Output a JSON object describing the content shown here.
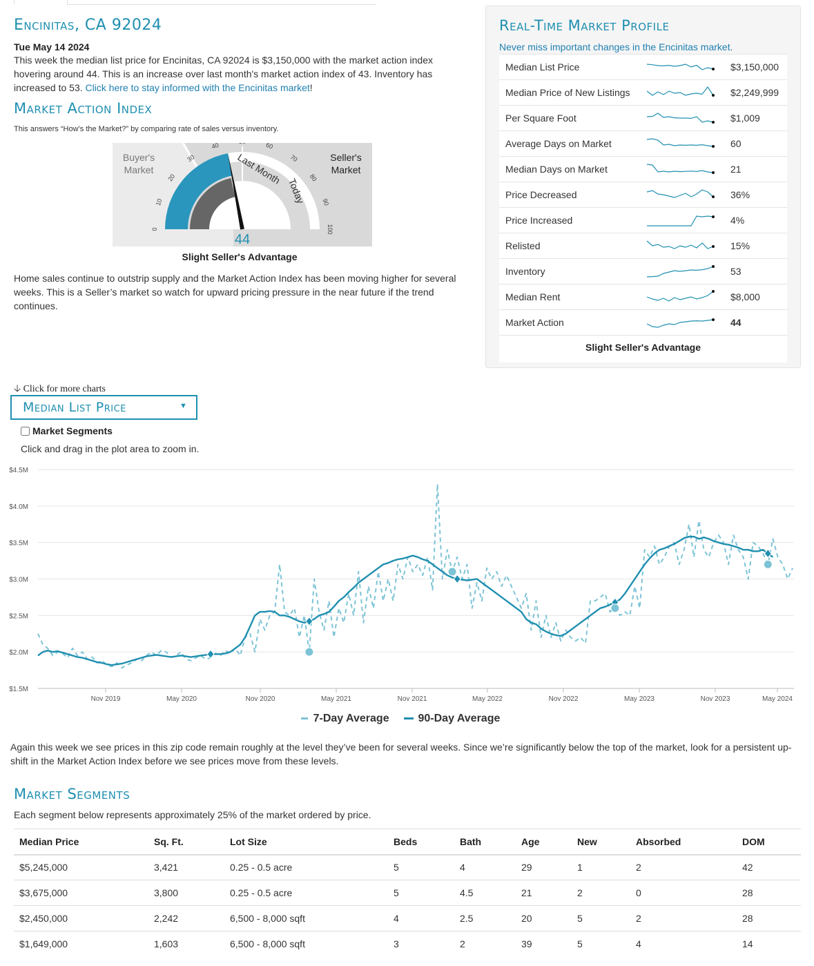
{
  "header": {
    "title": "Encinitas, CA 92024",
    "date": "Tue May 14 2024",
    "summary_text": "This week the median list price for Encinitas, CA 92024 is $3,150,000 with the market action index hovering around 44. This is an increase over last month's market action index of 43. Inventory has increased to 53.",
    "summary_link": "Click here to stay informed with the Encinitas market",
    "summary_end": "!"
  },
  "mai": {
    "title": "Market Action Index",
    "subtitle": "This answers “How’s the Market?” by comparing rate of sales versus inventory.",
    "buyers_label_1": "Buyer's",
    "buyers_label_2": "Market",
    "sellers_label_1": "Seller's",
    "sellers_label_2": "Market",
    "last_month_label": "Last Month",
    "today_label": "Today",
    "value": "44",
    "value_num": 44,
    "last_month_value": 43,
    "gauge_ticks": [
      "0",
      "10",
      "20",
      "30",
      "40",
      "50",
      "60",
      "70",
      "80",
      "90",
      "100"
    ],
    "caption": "Slight Seller's Advantage",
    "description": "Home sales continue to outstrip supply and the Market Action Index has been moving higher for several weeks. This is a Seller’s market so watch for upward pricing pressure in the near future if the trend continues."
  },
  "profile": {
    "title": "Real-Time Market Profile",
    "subtitle": "Never miss important changes in the Encinitas market.",
    "rows": [
      {
        "label": "Median List Price",
        "value": "$3,150,000",
        "spark": [
          0.7,
          0.66,
          0.6,
          0.58,
          0.62,
          0.55,
          0.6,
          0.7,
          0.5,
          0.62,
          0.3,
          0.45,
          0.35
        ]
      },
      {
        "label": "Median Price of New Listings",
        "value": "$2,249,999",
        "spark": [
          0.6,
          0.3,
          0.55,
          0.35,
          0.6,
          0.45,
          0.5,
          0.3,
          0.4,
          0.45,
          0.38,
          0.9,
          0.3
        ]
      },
      {
        "label": "Per Square Foot",
        "value": "$1,009",
        "spark": [
          0.6,
          0.62,
          0.85,
          0.55,
          0.6,
          0.52,
          0.5,
          0.5,
          0.48,
          0.6,
          0.2,
          0.3,
          0.2
        ]
      },
      {
        "label": "Average Days on Market",
        "value": "60",
        "spark": [
          0.8,
          0.85,
          0.75,
          0.4,
          0.45,
          0.35,
          0.4,
          0.38,
          0.4,
          0.38,
          0.42,
          0.35,
          0.3
        ]
      },
      {
        "label": "Median Days on Market",
        "value": "21",
        "spark": [
          0.85,
          0.8,
          0.3,
          0.35,
          0.3,
          0.35,
          0.32,
          0.34,
          0.36,
          0.33,
          0.4,
          0.3,
          0.25
        ]
      },
      {
        "label": "Price Decreased",
        "value": "36%",
        "spark": [
          0.7,
          0.8,
          0.55,
          0.5,
          0.4,
          0.3,
          0.45,
          0.6,
          0.35,
          0.55,
          0.85,
          0.7,
          0.35
        ]
      },
      {
        "label": "Price Increased",
        "value": "4%",
        "spark": [
          0.1,
          0.1,
          0.1,
          0.1,
          0.1,
          0.1,
          0.1,
          0.1,
          0.1,
          0.8,
          0.75,
          0.8,
          0.75
        ]
      },
      {
        "label": "Relisted",
        "value": "15%",
        "spark": [
          0.85,
          0.5,
          0.6,
          0.4,
          0.45,
          0.3,
          0.5,
          0.4,
          0.55,
          0.35,
          0.7,
          0.3,
          0.45
        ]
      },
      {
        "label": "Inventory",
        "value": "53",
        "spark": [
          0.1,
          0.12,
          0.15,
          0.35,
          0.45,
          0.55,
          0.5,
          0.55,
          0.6,
          0.58,
          0.62,
          0.7,
          0.85
        ]
      },
      {
        "label": "Median Rent",
        "value": "$8,000",
        "spark": [
          0.5,
          0.35,
          0.25,
          0.4,
          0.2,
          0.45,
          0.3,
          0.4,
          0.5,
          0.35,
          0.45,
          0.6,
          0.9
        ]
      },
      {
        "label": "Market Action",
        "value": "44",
        "spark": [
          0.4,
          0.2,
          0.15,
          0.3,
          0.4,
          0.35,
          0.5,
          0.55,
          0.6,
          0.62,
          0.6,
          0.65,
          0.7
        ]
      }
    ],
    "caption": "Slight Seller's Advantage"
  },
  "chart_section": {
    "more_charts": "Click for more charts",
    "dropdown_label": "Median List Price",
    "segments_checkbox": "Market Segments",
    "zoom_hint": "Click and drag in the plot area to zoom in.",
    "commentary": "Again this week we see prices in this zip code remain roughly at the level they’ve been for several weeks. Since we’re significantly below the top of the market, look for a persistent up-shift in the Market Action Index before we see prices move from these levels."
  },
  "chart_data": {
    "type": "line",
    "title": "",
    "xlabel": "",
    "ylabel": "",
    "ylim": [
      1.5,
      4.5
    ],
    "yticks": [
      "$1.5M",
      "$2.0M",
      "$2.5M",
      "$3.0M",
      "$3.5M",
      "$4.0M",
      "$4.5M"
    ],
    "xticks": [
      "Nov 2019",
      "May 2020",
      "Nov 2020",
      "May 2021",
      "Nov 2021",
      "May 2022",
      "Nov 2022",
      "May 2023",
      "Nov 2023",
      "May 2024"
    ],
    "grid": true,
    "legend": "bottom",
    "series": [
      {
        "name": "7-Day Average",
        "style": "dashed",
        "color": "#7dc3d6",
        "values": [
          2.25,
          2.1,
          2.05,
          1.95,
          2.0,
          1.98,
          1.92,
          2.05,
          1.95,
          2.0,
          1.9,
          1.93,
          1.85,
          1.88,
          1.82,
          1.8,
          1.85,
          1.78,
          1.82,
          1.85,
          1.9,
          1.88,
          1.95,
          2.0,
          1.95,
          2.02,
          2.0,
          1.93,
          1.95,
          2.0,
          1.9,
          1.88,
          1.92,
          1.95,
          1.9,
          1.92,
          1.98,
          1.95,
          2.02,
          1.98,
          2.05,
          1.95,
          2.2,
          2.25,
          2.0,
          2.45,
          2.3,
          2.5,
          2.55,
          3.2,
          2.55,
          2.5,
          2.6,
          2.2,
          2.5,
          2.0,
          3.0,
          2.55,
          2.3,
          2.7,
          2.2,
          2.6,
          2.4,
          2.8,
          2.5,
          3.1,
          2.4,
          2.9,
          2.6,
          3.1,
          2.7,
          3.0,
          2.7,
          3.2,
          3.0,
          3.3,
          3.1,
          3.2,
          3.05,
          3.3,
          2.85,
          4.3,
          3.0,
          3.4,
          3.1,
          3.3,
          3.0,
          3.2,
          2.6,
          2.95,
          2.7,
          3.15,
          3.0,
          3.1,
          2.9,
          3.05,
          2.9,
          2.75,
          2.6,
          2.8,
          2.3,
          2.7,
          2.2,
          2.5,
          2.2,
          2.4,
          2.15,
          2.3,
          2.2,
          2.15,
          2.2,
          2.12,
          2.7,
          2.7,
          2.75,
          2.8,
          2.55,
          2.6,
          2.5,
          2.55,
          2.5,
          2.9,
          2.6,
          3.4,
          3.3,
          3.45,
          3.2,
          3.3,
          3.45,
          3.5,
          3.2,
          3.4,
          3.75,
          3.3,
          3.8,
          3.4,
          3.3,
          3.5,
          3.6,
          3.5,
          3.2,
          3.6,
          3.4,
          3.3,
          3.0,
          3.5,
          3.45,
          3.35,
          3.2,
          3.55,
          3.3,
          3.2,
          3.0,
          3.15
        ]
      },
      {
        "name": "90-Day Average",
        "style": "solid",
        "color": "#1f8fb0",
        "values": [
          1.95,
          2.0,
          2.02,
          2.0,
          2.01,
          1.99,
          1.97,
          1.95,
          1.93,
          1.92,
          1.9,
          1.88,
          1.86,
          1.85,
          1.83,
          1.82,
          1.83,
          1.84,
          1.86,
          1.88,
          1.9,
          1.92,
          1.94,
          1.95,
          1.96,
          1.95,
          1.94,
          1.93,
          1.94,
          1.95,
          1.94,
          1.93,
          1.94,
          1.95,
          1.96,
          1.97,
          1.97,
          1.97,
          1.98,
          2.0,
          2.05,
          2.1,
          2.2,
          2.35,
          2.5,
          2.55,
          2.55,
          2.56,
          2.55,
          2.5,
          2.5,
          2.48,
          2.45,
          2.42,
          2.4,
          2.42,
          2.45,
          2.5,
          2.52,
          2.55,
          2.62,
          2.7,
          2.75,
          2.82,
          2.88,
          2.95,
          3.0,
          3.05,
          3.1,
          3.15,
          3.2,
          3.22,
          3.25,
          3.27,
          3.28,
          3.3,
          3.32,
          3.3,
          3.27,
          3.25,
          3.2,
          3.15,
          3.1,
          3.05,
          3.02,
          3.0,
          2.99,
          2.98,
          2.99,
          3.0,
          2.95,
          2.9,
          2.85,
          2.8,
          2.75,
          2.7,
          2.65,
          2.6,
          2.55,
          2.45,
          2.4,
          2.38,
          2.32,
          2.28,
          2.25,
          2.23,
          2.22,
          2.25,
          2.3,
          2.35,
          2.4,
          2.45,
          2.5,
          2.55,
          2.6,
          2.62,
          2.65,
          2.68,
          2.72,
          2.8,
          2.9,
          3.0,
          3.1,
          3.2,
          3.28,
          3.35,
          3.4,
          3.42,
          3.45,
          3.48,
          3.52,
          3.56,
          3.58,
          3.58,
          3.55,
          3.57,
          3.55,
          3.52,
          3.5,
          3.48,
          3.47,
          3.45,
          3.43,
          3.4,
          3.4,
          3.38,
          3.38,
          3.4,
          3.35,
          3.3
        ]
      }
    ],
    "markers": [
      {
        "series": "90-Day Average",
        "shape": "diamond",
        "index": 35
      },
      {
        "series": "90-Day Average",
        "shape": "diamond",
        "index": 55
      },
      {
        "series": "7-Day Average",
        "shape": "circle",
        "index": 55
      },
      {
        "series": "90-Day Average",
        "shape": "diamond",
        "index": 85
      },
      {
        "series": "7-Day Average",
        "shape": "circle",
        "index": 84
      },
      {
        "series": "90-Day Average",
        "shape": "diamond",
        "index": 117
      },
      {
        "series": "7-Day Average",
        "shape": "circle",
        "index": 117
      },
      {
        "series": "90-Day Average",
        "shape": "diamond",
        "index": 148
      },
      {
        "series": "7-Day Average",
        "shape": "circle",
        "index": 148
      }
    ]
  },
  "segments": {
    "title": "Market Segments",
    "subtitle": "Each segment below represents approximately 25% of the market ordered by price.",
    "columns": [
      "Median Price",
      "Sq. Ft.",
      "Lot Size",
      "Beds",
      "Bath",
      "Age",
      "New",
      "Absorbed",
      "DOM"
    ],
    "rows": [
      [
        "$5,245,000",
        "3,421",
        "0.25 - 0.5 acre",
        "5",
        "4",
        "29",
        "1",
        "2",
        "42"
      ],
      [
        "$3,675,000",
        "3,800",
        "0.25 - 0.5 acre",
        "5",
        "4.5",
        "21",
        "2",
        "0",
        "28"
      ],
      [
        "$2,450,000",
        "2,242",
        "6,500 - 8,000 sqft",
        "4",
        "2.5",
        "20",
        "5",
        "2",
        "28"
      ],
      [
        "$1,649,000",
        "1,603",
        "6,500 - 8,000 sqft",
        "3",
        "2",
        "39",
        "5",
        "4",
        "14"
      ]
    ]
  },
  "colors": {
    "accent": "#1f8fb0",
    "light_accent": "#7dc3d6",
    "gauge_gray": "#666666"
  }
}
